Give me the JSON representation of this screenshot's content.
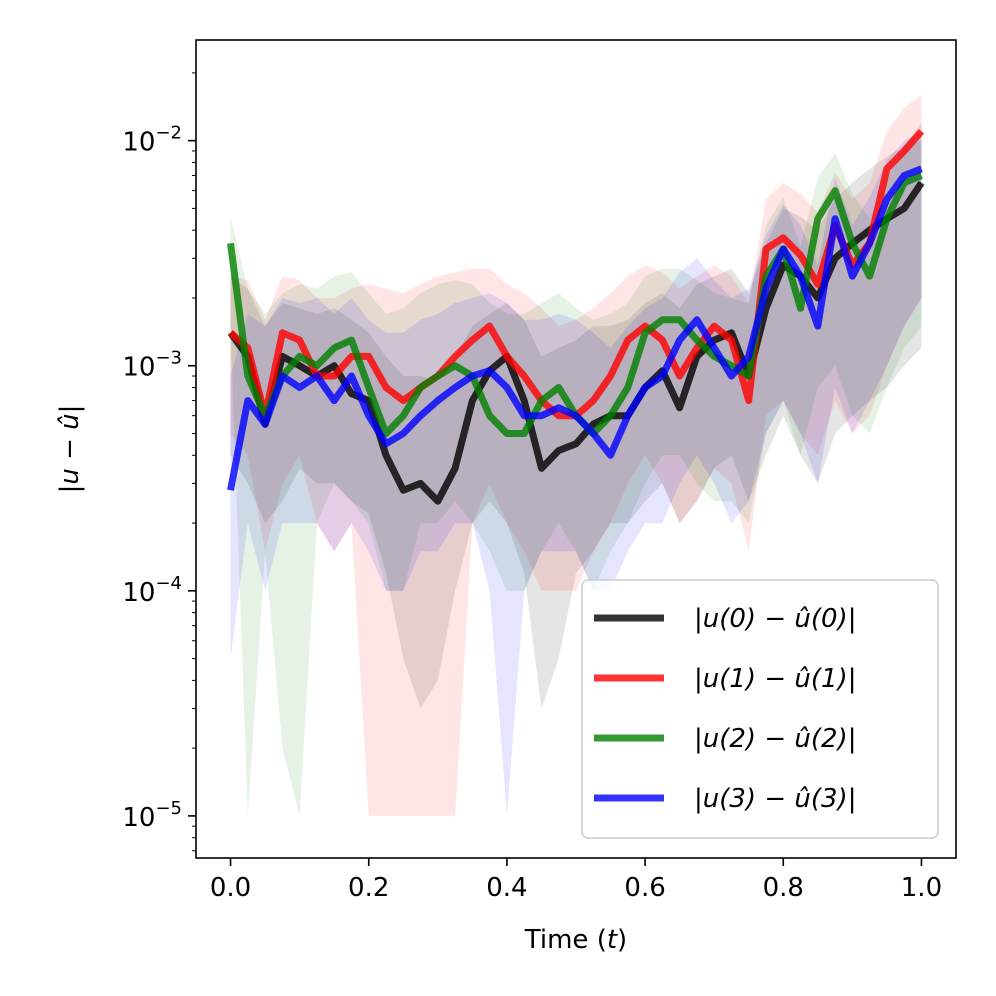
{
  "chart_data": {
    "type": "line",
    "xlabel": "Time (t)",
    "ylabel": "|u − û|",
    "x_range": [
      -0.05,
      1.05
    ],
    "y_range": [
      6.5e-06,
      0.028
    ],
    "y_scale": "log",
    "grid": false,
    "legend_position": "lower-right",
    "x_ticks": [
      {
        "value": 0.0,
        "label": "0.0"
      },
      {
        "value": 0.2,
        "label": "0.2"
      },
      {
        "value": 0.4,
        "label": "0.4"
      },
      {
        "value": 0.6,
        "label": "0.6"
      },
      {
        "value": 0.8,
        "label": "0.8"
      },
      {
        "value": 1.0,
        "label": "1.0"
      }
    ],
    "y_ticks": [
      {
        "value": 0.01,
        "base": "10",
        "exp": "−2"
      },
      {
        "value": 0.001,
        "base": "10",
        "exp": "−3"
      },
      {
        "value": 0.0001,
        "base": "10",
        "exp": "−4"
      },
      {
        "value": 1e-05,
        "base": "10",
        "exp": "−5"
      }
    ],
    "x": [
      0.0,
      0.025,
      0.05,
      0.075,
      0.1,
      0.125,
      0.15,
      0.175,
      0.2,
      0.225,
      0.25,
      0.275,
      0.3,
      0.325,
      0.35,
      0.375,
      0.4,
      0.425,
      0.45,
      0.475,
      0.5,
      0.525,
      0.55,
      0.575,
      0.6,
      0.625,
      0.65,
      0.675,
      0.7,
      0.725,
      0.75,
      0.775,
      0.8,
      0.825,
      0.85,
      0.875,
      0.9,
      0.925,
      0.95,
      0.975,
      1.0
    ],
    "series": [
      {
        "name": "|u(0) − û(0)|",
        "color": "#000000",
        "values": [
          0.0014,
          0.0011,
          0.00055,
          0.0011,
          0.001,
          0.0009,
          0.001,
          0.00075,
          0.0007,
          0.0004,
          0.00028,
          0.0003,
          0.00025,
          0.00035,
          0.0007,
          0.00095,
          0.0011,
          0.0007,
          0.00035,
          0.00042,
          0.00045,
          0.00055,
          0.0006,
          0.0006,
          0.0008,
          0.00095,
          0.00065,
          0.0011,
          0.0013,
          0.0014,
          0.0009,
          0.0018,
          0.0028,
          0.0025,
          0.002,
          0.003,
          0.0035,
          0.004,
          0.0045,
          0.005,
          0.0065
        ],
        "band_lo": [
          0.0004,
          0.0003,
          0.0002,
          0.00025,
          0.00035,
          0.0003,
          0.0003,
          0.00025,
          0.00022,
          0.00012,
          5e-05,
          3e-05,
          4e-05,
          0.0001,
          0.0002,
          0.00025,
          0.0002,
          0.00012,
          3e-05,
          5e-05,
          0.00012,
          0.00015,
          0.0002,
          0.0002,
          0.00025,
          0.0003,
          0.0002,
          0.00025,
          0.00035,
          0.0004,
          0.00025,
          0.0004,
          0.0006,
          0.0004,
          0.0003,
          0.0005,
          0.0006,
          0.0007,
          0.0008,
          0.001,
          0.0012
        ],
        "band_hi": [
          0.0025,
          0.0022,
          0.0015,
          0.0019,
          0.0018,
          0.0017,
          0.0018,
          0.0016,
          0.0014,
          0.0011,
          0.0009,
          0.0009,
          0.00085,
          0.0011,
          0.0015,
          0.0017,
          0.0019,
          0.0016,
          0.0011,
          0.0012,
          0.0013,
          0.0015,
          0.0015,
          0.0016,
          0.0019,
          0.0021,
          0.0018,
          0.0023,
          0.0025,
          0.0027,
          0.0021,
          0.0035,
          0.005,
          0.0046,
          0.004,
          0.0055,
          0.0065,
          0.0075,
          0.0085,
          0.0095,
          0.012
        ]
      },
      {
        "name": "|u(1) − û(1)|",
        "color": "#ff0000",
        "values": [
          0.0014,
          0.0012,
          0.0006,
          0.0014,
          0.0013,
          0.0009,
          0.0009,
          0.0011,
          0.0011,
          0.0008,
          0.0007,
          0.0008,
          0.0009,
          0.0011,
          0.0013,
          0.0015,
          0.0011,
          0.0009,
          0.0007,
          0.0006,
          0.0006,
          0.0007,
          0.0009,
          0.0013,
          0.0015,
          0.0013,
          0.0009,
          0.0012,
          0.0015,
          0.0013,
          0.0007,
          0.0033,
          0.0037,
          0.0031,
          0.0023,
          0.0042,
          0.0028,
          0.0035,
          0.0075,
          0.009,
          0.011
        ],
        "band_lo": [
          0.0005,
          0.0004,
          0.00015,
          0.0003,
          0.0004,
          0.0002,
          0.00015,
          0.0002,
          1e-05,
          1e-05,
          1e-05,
          1e-05,
          1e-05,
          1e-05,
          0.0002,
          0.0003,
          0.0002,
          0.00015,
          0.0001,
          0.0001,
          0.0001,
          0.00015,
          0.0002,
          0.0003,
          0.0004,
          0.0003,
          0.0002,
          0.00025,
          0.00035,
          0.0003,
          0.00015,
          0.0006,
          0.0007,
          0.0005,
          0.0004,
          0.0007,
          0.0005,
          0.0006,
          0.001,
          0.0015,
          0.002
        ],
        "band_hi": [
          0.0025,
          0.0024,
          0.0016,
          0.0025,
          0.0024,
          0.002,
          0.002,
          0.0022,
          0.0023,
          0.0022,
          0.0021,
          0.0023,
          0.0025,
          0.0026,
          0.0027,
          0.0027,
          0.0023,
          0.0021,
          0.0018,
          0.0015,
          0.0016,
          0.0018,
          0.0021,
          0.0025,
          0.0028,
          0.0026,
          0.0022,
          0.0025,
          0.0028,
          0.0025,
          0.0019,
          0.0055,
          0.0065,
          0.0058,
          0.0048,
          0.0072,
          0.0055,
          0.0065,
          0.011,
          0.014,
          0.016
        ]
      },
      {
        "name": "|u(2) − û(2)|",
        "color": "#008000",
        "values": [
          0.0035,
          0.0009,
          0.0006,
          0.0009,
          0.0011,
          0.001,
          0.0012,
          0.0013,
          0.0008,
          0.0005,
          0.0006,
          0.0008,
          0.0009,
          0.001,
          0.0009,
          0.0006,
          0.0005,
          0.0005,
          0.0007,
          0.0008,
          0.0006,
          0.0005,
          0.0006,
          0.0008,
          0.0014,
          0.0016,
          0.0016,
          0.0013,
          0.0011,
          0.001,
          0.0009,
          0.0025,
          0.0033,
          0.0018,
          0.0045,
          0.006,
          0.0035,
          0.0025,
          0.0045,
          0.0065,
          0.007
        ],
        "band_lo": [
          0.0015,
          1e-05,
          0.00015,
          2e-05,
          1e-05,
          0.0002,
          0.0003,
          0.00025,
          0.0002,
          0.0001,
          0.0001,
          0.0002,
          0.0002,
          0.00025,
          0.0002,
          0.00015,
          0.0001,
          0.0001,
          0.00015,
          0.0002,
          0.00015,
          0.0001,
          0.00015,
          0.0002,
          0.0003,
          0.0004,
          0.0004,
          0.0003,
          0.00025,
          0.00025,
          0.0002,
          0.0005,
          0.0007,
          0.0004,
          0.0008,
          0.001,
          0.0006,
          0.0005,
          0.0008,
          0.0012,
          0.0015
        ],
        "band_hi": [
          0.0046,
          0.0022,
          0.0017,
          0.0021,
          0.0023,
          0.0022,
          0.0025,
          0.0026,
          0.0021,
          0.0017,
          0.0018,
          0.0021,
          0.0023,
          0.0024,
          0.0023,
          0.0019,
          0.0017,
          0.0017,
          0.0019,
          0.0021,
          0.0018,
          0.0016,
          0.0017,
          0.0019,
          0.0025,
          0.0027,
          0.0027,
          0.0024,
          0.0021,
          0.002,
          0.0019,
          0.0042,
          0.0056,
          0.0034,
          0.0068,
          0.0088,
          0.0058,
          0.0045,
          0.0068,
          0.0092,
          0.01
        ]
      },
      {
        "name": "|u(3) − û(3)|",
        "color": "#0000ff",
        "values": [
          0.00028,
          0.0007,
          0.00055,
          0.0009,
          0.0008,
          0.0009,
          0.0007,
          0.0009,
          0.0006,
          0.00045,
          0.0005,
          0.0006,
          0.0007,
          0.0008,
          0.0009,
          0.00095,
          0.0008,
          0.0006,
          0.0006,
          0.00065,
          0.0006,
          0.0005,
          0.0004,
          0.0006,
          0.0008,
          0.0009,
          0.0013,
          0.0016,
          0.0012,
          0.0009,
          0.0011,
          0.0022,
          0.0033,
          0.0025,
          0.0015,
          0.0045,
          0.0025,
          0.0035,
          0.0055,
          0.007,
          0.0075
        ],
        "band_lo": [
          5e-05,
          0.0002,
          0.0001,
          0.0002,
          0.0002,
          0.0002,
          0.00015,
          0.0002,
          0.00015,
          0.0001,
          0.0001,
          0.00015,
          0.00015,
          0.0002,
          0.0002,
          0.0001,
          1e-05,
          0.0001,
          0.00015,
          0.00015,
          0.00015,
          0.0001,
          0.0001,
          0.00015,
          0.0002,
          0.0002,
          0.0003,
          0.0004,
          0.0003,
          0.0002,
          0.00025,
          0.0005,
          0.0007,
          0.0005,
          0.0003,
          0.0008,
          0.0005,
          0.0007,
          0.001,
          0.0015,
          0.002
        ],
        "band_hi": [
          0.0009,
          0.0017,
          0.0015,
          0.002,
          0.0019,
          0.002,
          0.0017,
          0.002,
          0.0016,
          0.0014,
          0.0014,
          0.0016,
          0.0017,
          0.0019,
          0.002,
          0.0021,
          0.0019,
          0.0016,
          0.0016,
          0.0017,
          0.0016,
          0.0014,
          0.0012,
          0.0015,
          0.0018,
          0.002,
          0.0026,
          0.003,
          0.0024,
          0.002,
          0.0022,
          0.0038,
          0.0052,
          0.0042,
          0.0028,
          0.0068,
          0.0042,
          0.0056,
          0.0082,
          0.01,
          0.011
        ]
      }
    ]
  }
}
